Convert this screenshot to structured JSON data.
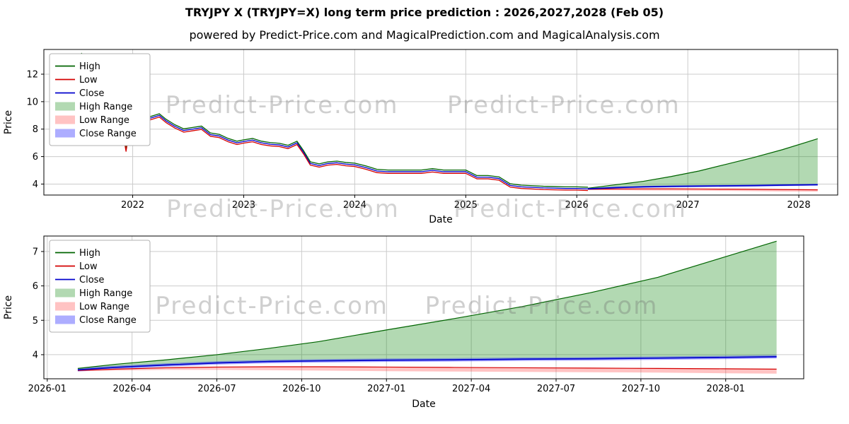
{
  "title": "TRYJPY X (TRYJPY=X) long term price prediction : 2026,2027,2028 (Feb 05)",
  "subtitle": "powered by Predict-Price.com and MagicalPrediction.com and MagicalAnalysis.com",
  "watermark_text": "Predict-Price.com",
  "legend": [
    "High",
    "Low",
    "Close",
    "High Range",
    "Low Range",
    "Close Range"
  ],
  "colors": {
    "high_line": "#006400",
    "low_line": "#d40000",
    "close_line": "#0000cd",
    "high_range_fill": "rgba(0,128,0,0.30)",
    "low_range_fill": "rgba(255,40,40,0.28)",
    "close_range_fill": "rgba(40,40,255,0.38)",
    "grid": "#cccccc",
    "watermark": "rgba(110,110,110,0.33)"
  },
  "chart_data": [
    {
      "type": "line",
      "xlabel": "Date",
      "ylabel": "Price",
      "xlim": [
        2021.2,
        2028.35
      ],
      "ylim": [
        3.2,
        13.8
      ],
      "xticks": {
        "values": [
          2022,
          2023,
          2024,
          2025,
          2026,
          2027,
          2028
        ],
        "labels": [
          "2022",
          "2023",
          "2024",
          "2025",
          "2026",
          "2027",
          "2028"
        ]
      },
      "yticks": [
        4,
        6,
        8,
        10,
        12
      ],
      "history": {
        "x": [
          2021.5,
          2021.54,
          2021.57,
          2021.6,
          2021.65,
          2021.7,
          2021.75,
          2021.8,
          2021.85,
          2021.9,
          2021.94,
          2021.96,
          2022.0,
          2022.08,
          2022.16,
          2022.24,
          2022.3,
          2022.38,
          2022.46,
          2022.54,
          2022.62,
          2022.7,
          2022.78,
          2022.86,
          2022.94,
          2023.0,
          2023.08,
          2023.16,
          2023.24,
          2023.32,
          2023.4,
          2023.48,
          2023.54,
          2023.6,
          2023.68,
          2023.76,
          2023.84,
          2023.92,
          2024.0,
          2024.1,
          2024.2,
          2024.3,
          2024.4,
          2024.5,
          2024.6,
          2024.7,
          2024.8,
          2024.9,
          2025.0,
          2025.1,
          2025.2,
          2025.3,
          2025.4,
          2025.5,
          2025.6,
          2025.7,
          2025.8,
          2025.9,
          2026.0,
          2026.1
        ],
        "high": [
          12.52,
          13.52,
          12.82,
          12.32,
          12.47,
          11.32,
          10.32,
          9.92,
          9.12,
          8.52,
          6.62,
          7.62,
          8.52,
          8.62,
          8.92,
          9.12,
          8.72,
          8.32,
          8.02,
          8.12,
          8.22,
          7.72,
          7.62,
          7.32,
          7.12,
          7.22,
          7.32,
          7.12,
          7.02,
          6.97,
          6.82,
          7.12,
          6.42,
          5.62,
          5.47,
          5.62,
          5.67,
          5.57,
          5.52,
          5.32,
          5.07,
          5.02,
          5.02,
          5.02,
          5.02,
          5.12,
          5.02,
          5.02,
          5.02,
          4.62,
          4.62,
          4.52,
          4.02,
          3.92,
          3.88,
          3.84,
          3.82,
          3.8,
          3.8,
          3.77
        ],
        "low": [
          12.28,
          13.28,
          12.58,
          12.08,
          12.23,
          11.08,
          10.08,
          9.68,
          8.88,
          8.28,
          6.38,
          7.38,
          8.28,
          8.38,
          8.68,
          8.88,
          8.48,
          8.08,
          7.78,
          7.88,
          7.98,
          7.48,
          7.38,
          7.08,
          6.88,
          6.98,
          7.08,
          6.88,
          6.78,
          6.73,
          6.58,
          6.88,
          6.18,
          5.38,
          5.23,
          5.38,
          5.43,
          5.33,
          5.28,
          5.08,
          4.83,
          4.78,
          4.78,
          4.78,
          4.78,
          4.88,
          4.78,
          4.78,
          4.78,
          4.38,
          4.38,
          4.28,
          3.78,
          3.68,
          3.64,
          3.6,
          3.58,
          3.56,
          3.56,
          3.53
        ],
        "close": [
          12.4,
          13.4,
          12.7,
          12.2,
          12.35,
          11.2,
          10.2,
          9.8,
          9.0,
          8.4,
          6.5,
          7.5,
          8.4,
          8.5,
          8.8,
          9.0,
          8.6,
          8.2,
          7.9,
          8.0,
          8.1,
          7.6,
          7.5,
          7.2,
          7.0,
          7.1,
          7.2,
          7.0,
          6.9,
          6.85,
          6.7,
          7.0,
          6.3,
          5.5,
          5.35,
          5.5,
          5.55,
          5.45,
          5.4,
          5.2,
          4.95,
          4.9,
          4.9,
          4.9,
          4.9,
          5.0,
          4.9,
          4.9,
          4.9,
          4.5,
          4.5,
          4.4,
          3.9,
          3.8,
          3.76,
          3.72,
          3.7,
          3.68,
          3.68,
          3.65
        ]
      },
      "forecast": {
        "x": [
          2026.1,
          2026.35,
          2026.6,
          2026.85,
          2027.1,
          2027.35,
          2027.6,
          2027.85,
          2028.17
        ],
        "close": [
          3.65,
          3.74,
          3.8,
          3.83,
          3.85,
          3.87,
          3.89,
          3.92,
          3.95
        ],
        "high": [
          3.7,
          3.95,
          4.2,
          4.55,
          4.95,
          5.45,
          5.95,
          6.5,
          7.3
        ],
        "low": [
          3.62,
          3.64,
          3.65,
          3.65,
          3.64,
          3.63,
          3.62,
          3.6,
          3.58
        ],
        "low_lower": [
          3.58,
          3.55,
          3.53,
          3.52,
          3.51,
          3.5,
          3.48,
          3.46,
          3.45
        ],
        "close_upper": [
          3.7,
          3.81,
          3.87,
          3.9,
          3.92,
          3.94,
          3.96,
          3.99,
          4.02
        ],
        "close_lower": [
          3.6,
          3.67,
          3.73,
          3.76,
          3.78,
          3.8,
          3.82,
          3.85,
          3.88
        ]
      }
    },
    {
      "type": "line",
      "xlabel": "Date",
      "ylabel": "Price",
      "xlim": [
        2025.99,
        2028.23
      ],
      "ylim": [
        3.3,
        7.45
      ],
      "xticks": {
        "values": [
          2026.0,
          2026.25,
          2026.5,
          2026.75,
          2027.0,
          2027.25,
          2027.5,
          2027.75,
          2028.0
        ],
        "labels": [
          "2026-01",
          "2026-04",
          "2026-07",
          "2026-10",
          "2027-01",
          "2027-04",
          "2027-07",
          "2027-10",
          "2028-01"
        ]
      },
      "yticks": [
        4,
        5,
        6,
        7
      ],
      "forecast": {
        "x": [
          2026.09,
          2026.2,
          2026.35,
          2026.5,
          2026.65,
          2026.8,
          2027.0,
          2027.2,
          2027.4,
          2027.6,
          2027.8,
          2028.0,
          2028.15
        ],
        "close": [
          3.56,
          3.63,
          3.7,
          3.76,
          3.8,
          3.82,
          3.84,
          3.85,
          3.87,
          3.88,
          3.9,
          3.92,
          3.94
        ],
        "high": [
          3.6,
          3.72,
          3.85,
          4.0,
          4.18,
          4.38,
          4.72,
          5.05,
          5.4,
          5.8,
          6.25,
          6.85,
          7.3
        ],
        "low": [
          3.54,
          3.58,
          3.62,
          3.64,
          3.65,
          3.65,
          3.64,
          3.63,
          3.62,
          3.61,
          3.6,
          3.59,
          3.58
        ],
        "low_lower": [
          3.52,
          3.54,
          3.56,
          3.56,
          3.55,
          3.54,
          3.52,
          3.51,
          3.5,
          3.49,
          3.48,
          3.46,
          3.45
        ],
        "close_upper": [
          3.61,
          3.68,
          3.75,
          3.81,
          3.85,
          3.87,
          3.89,
          3.9,
          3.92,
          3.93,
          3.95,
          3.97,
          3.99
        ],
        "close_lower": [
          3.51,
          3.58,
          3.65,
          3.71,
          3.75,
          3.77,
          3.79,
          3.8,
          3.82,
          3.83,
          3.85,
          3.87,
          3.89
        ]
      }
    }
  ]
}
